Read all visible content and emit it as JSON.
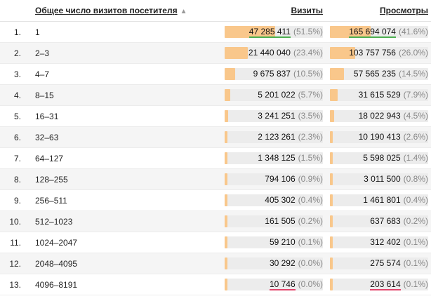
{
  "header": {
    "range_label": "Общее число визитов посетителя",
    "sort_arrow": "▲",
    "visits_label": "Визиты",
    "views_label": "Просмотры"
  },
  "colors": {
    "bar_fill": "#f9c78b",
    "bar_track": "#ececec",
    "max_underline": "#4caf50",
    "min_underline": "#e2456b"
  },
  "rows": [
    {
      "index": "1.",
      "range": "1",
      "visits": "47 285 411",
      "visits_pct": "(51.5%)",
      "visits_share": 0.515,
      "views": "165 694 074",
      "views_pct": "(41.6%)",
      "views_share": 0.416
    },
    {
      "index": "2.",
      "range": "2–3",
      "visits": "21 440 040",
      "visits_pct": "(23.4%)",
      "visits_share": 0.234,
      "views": "103 757 756",
      "views_pct": "(26.0%)",
      "views_share": 0.26
    },
    {
      "index": "3.",
      "range": "4–7",
      "visits": "9 675 837",
      "visits_pct": "(10.5%)",
      "visits_share": 0.105,
      "views": "57 565 235",
      "views_pct": "(14.5%)",
      "views_share": 0.145
    },
    {
      "index": "4.",
      "range": "8–15",
      "visits": "5 201 022",
      "visits_pct": "(5.7%)",
      "visits_share": 0.057,
      "views": "31 615 529",
      "views_pct": "(7.9%)",
      "views_share": 0.079
    },
    {
      "index": "5.",
      "range": "16–31",
      "visits": "3 241 251",
      "visits_pct": "(3.5%)",
      "visits_share": 0.035,
      "views": "18 022 943",
      "views_pct": "(4.5%)",
      "views_share": 0.045
    },
    {
      "index": "6.",
      "range": "32–63",
      "visits": "2 123 261",
      "visits_pct": "(2.3%)",
      "visits_share": 0.023,
      "views": "10 190 413",
      "views_pct": "(2.6%)",
      "views_share": 0.026
    },
    {
      "index": "7.",
      "range": "64–127",
      "visits": "1 348 125",
      "visits_pct": "(1.5%)",
      "visits_share": 0.015,
      "views": "5 598 025",
      "views_pct": "(1.4%)",
      "views_share": 0.014
    },
    {
      "index": "8.",
      "range": "128–255",
      "visits": "794 106",
      "visits_pct": "(0.9%)",
      "visits_share": 0.009,
      "views": "3 011 500",
      "views_pct": "(0.8%)",
      "views_share": 0.008
    },
    {
      "index": "9.",
      "range": "256–511",
      "visits": "405 302",
      "visits_pct": "(0.4%)",
      "visits_share": 0.004,
      "views": "1 461 801",
      "views_pct": "(0.4%)",
      "views_share": 0.004
    },
    {
      "index": "10.",
      "range": "512–1023",
      "visits": "161 505",
      "visits_pct": "(0.2%)",
      "visits_share": 0.002,
      "views": "637 683",
      "views_pct": "(0.2%)",
      "views_share": 0.002
    },
    {
      "index": "11.",
      "range": "1024–2047",
      "visits": "59 210",
      "visits_pct": "(0.1%)",
      "visits_share": 0.001,
      "views": "312 402",
      "views_pct": "(0.1%)",
      "views_share": 0.001
    },
    {
      "index": "12.",
      "range": "2048–4095",
      "visits": "30 292",
      "visits_pct": "(0.0%)",
      "visits_share": 0.0,
      "views": "275 574",
      "views_pct": "(0.1%)",
      "views_share": 0.001
    },
    {
      "index": "13.",
      "range": "4096–8191",
      "visits": "10 746",
      "visits_pct": "(0.0%)",
      "visits_share": 0.0,
      "views": "203 614",
      "views_pct": "(0.1%)",
      "views_share": 0.001
    }
  ]
}
